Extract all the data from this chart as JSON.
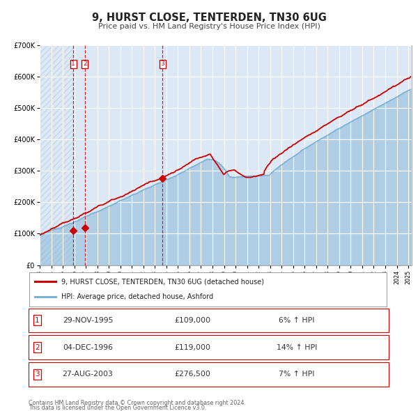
{
  "title": "9, HURST CLOSE, TENTERDEN, TN30 6UG",
  "subtitle": "Price paid vs. HM Land Registry's House Price Index (HPI)",
  "fig_bg_color": "#ffffff",
  "plot_bg_color": "#dce8f5",
  "hatch_color": "#c8d8e8",
  "grid_color": "#ffffff",
  "hpi_color": "#7ab0d4",
  "price_color": "#cc0000",
  "ylim": [
    0,
    700000
  ],
  "yticks": [
    0,
    100000,
    200000,
    300000,
    400000,
    500000,
    600000,
    700000
  ],
  "ytick_labels": [
    "£0",
    "£100K",
    "£200K",
    "£300K",
    "£400K",
    "£500K",
    "£600K",
    "£700K"
  ],
  "xmin": 1993,
  "xmax": 2025.3,
  "transactions": [
    {
      "num": 1,
      "date_num": 1995.91,
      "price": 109000,
      "date_str": "29-NOV-1995",
      "pct": "6%",
      "dir": "↑"
    },
    {
      "num": 2,
      "date_num": 1996.92,
      "price": 119000,
      "date_str": "04-DEC-1996",
      "pct": "14%",
      "dir": "↑"
    },
    {
      "num": 3,
      "date_num": 2003.65,
      "price": 276500,
      "date_str": "27-AUG-2003",
      "pct": "7%",
      "dir": "↑"
    }
  ],
  "legend_line1": "9, HURST CLOSE, TENTERDEN, TN30 6UG (detached house)",
  "legend_line2": "HPI: Average price, detached house, Ashford",
  "footer1": "Contains HM Land Registry data © Crown copyright and database right 2024.",
  "footer2": "This data is licensed under the Open Government Licence v3.0."
}
